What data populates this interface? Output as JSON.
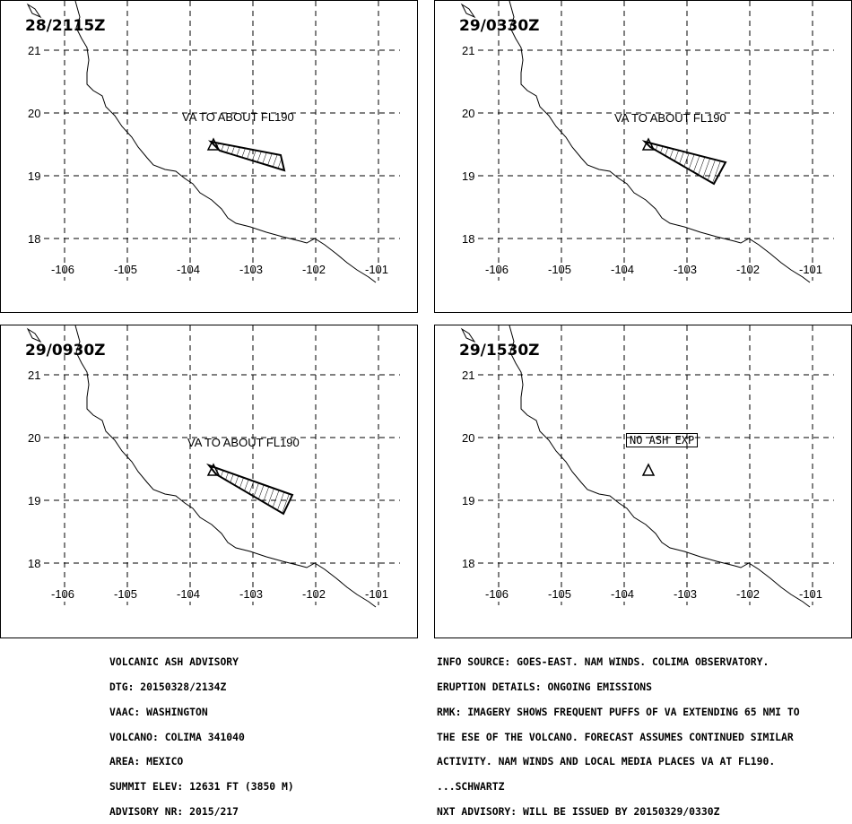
{
  "panels": [
    {
      "time": "28/2115Z",
      "va_label": "VA TO ABOUT FL190",
      "no_ash": ""
    },
    {
      "time": "29/0330Z",
      "va_label": "VA TO ABOUT FL190",
      "no_ash": ""
    },
    {
      "time": "29/0930Z",
      "va_label": "VA TO ABOUT FL190",
      "no_ash": ""
    },
    {
      "time": "29/1530Z",
      "va_label": "",
      "no_ash": "NO ASH EXP"
    }
  ],
  "lat_labels": [
    "21",
    "20",
    "19",
    "18"
  ],
  "lon_labels": [
    "-106",
    "-105",
    "-104",
    "-103",
    "-102",
    "-101"
  ],
  "advisory_left": [
    "VOLCANIC ASH ADVISORY",
    "DTG: 20150328/2134Z",
    "VAAC: WASHINGTON",
    "VOLCANO: COLIMA 341040",
    "AREA: MEXICO",
    "SUMMIT ELEV: 12631 FT (3850 M)",
    "ADVISORY NR: 2015/217"
  ],
  "advisory_right": [
    "INFO SOURCE: GOES-EAST. NAM WINDS. COLIMA OBSERVATORY.",
    "ERUPTION DETAILS: ONGOING EMISSIONS",
    "RMK: IMAGERY SHOWS FREQUENT PUFFS OF VA EXTENDING 65 NMI TO",
    "THE ESE OF THE VOLCANO. FORECAST ASSUMES CONTINUED SIMILAR",
    "ACTIVITY. NAM WINDS AND LOCAL MEDIA PLACES VA AT FL190.",
    "...SCHWARTZ",
    "NXT ADVISORY: WILL BE ISSUED BY 20150329/0330Z"
  ]
}
